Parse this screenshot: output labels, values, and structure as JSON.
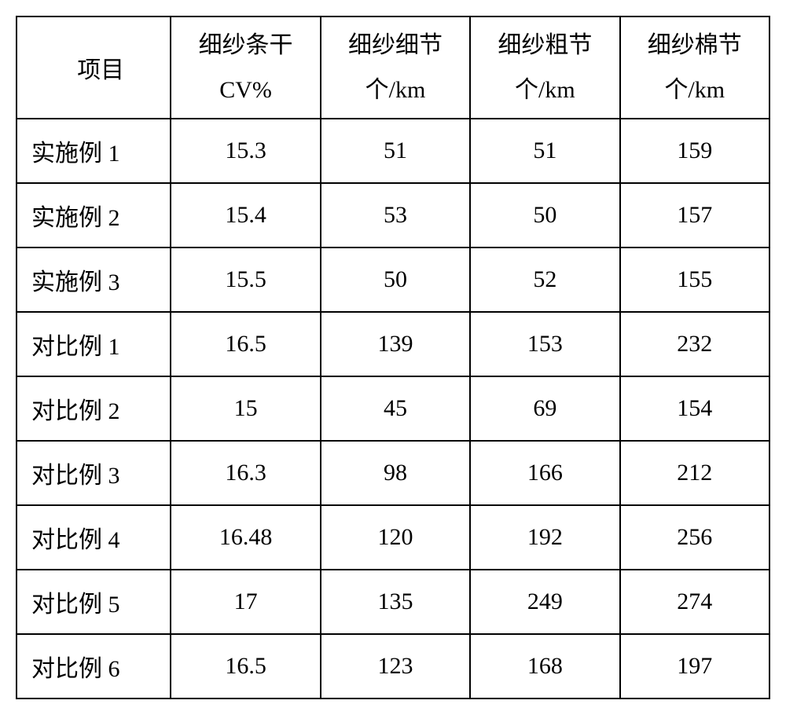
{
  "table": {
    "type": "table",
    "background_color": "#ffffff",
    "border_color": "#000000",
    "border_width": 2,
    "text_color": "#000000",
    "font_family": "SimSun",
    "header_fontsize": 30,
    "cell_fontsize": 30,
    "header_row_height": 130,
    "data_row_height": 82,
    "columns": [
      {
        "key": "item",
        "header_line1": "项目",
        "header_line2": "",
        "align": "left",
        "width_pct": 20.5
      },
      {
        "key": "cv",
        "header_line1": "细纱条干",
        "header_line2": "CV%",
        "align": "center",
        "width_pct": 19.875
      },
      {
        "key": "thin",
        "header_line1": "细纱细节",
        "header_line2": "个/km",
        "align": "center",
        "width_pct": 19.875
      },
      {
        "key": "thick",
        "header_line1": "细纱粗节",
        "header_line2": "个/km",
        "align": "center",
        "width_pct": 19.875
      },
      {
        "key": "nep",
        "header_line1": "细纱棉节",
        "header_line2": "个/km",
        "align": "center",
        "width_pct": 19.875
      }
    ],
    "rows": [
      {
        "item": "实施例 1",
        "cv": "15.3",
        "thin": "51",
        "thick": "51",
        "nep": "159"
      },
      {
        "item": "实施例 2",
        "cv": "15.4",
        "thin": "53",
        "thick": "50",
        "nep": "157"
      },
      {
        "item": "实施例 3",
        "cv": "15.5",
        "thin": "50",
        "thick": "52",
        "nep": "155"
      },
      {
        "item": "对比例 1",
        "cv": "16.5",
        "thin": "139",
        "thick": "153",
        "nep": "232"
      },
      {
        "item": "对比例 2",
        "cv": "15",
        "thin": "45",
        "thick": "69",
        "nep": "154"
      },
      {
        "item": "对比例 3",
        "cv": "16.3",
        "thin": "98",
        "thick": "166",
        "nep": "212"
      },
      {
        "item": "对比例 4",
        "cv": "16.48",
        "thin": "120",
        "thick": "192",
        "nep": "256"
      },
      {
        "item": "对比例 5",
        "cv": "17",
        "thin": "135",
        "thick": "249",
        "nep": "274"
      },
      {
        "item": "对比例 6",
        "cv": "16.5",
        "thin": "123",
        "thick": "168",
        "nep": "197"
      }
    ]
  }
}
